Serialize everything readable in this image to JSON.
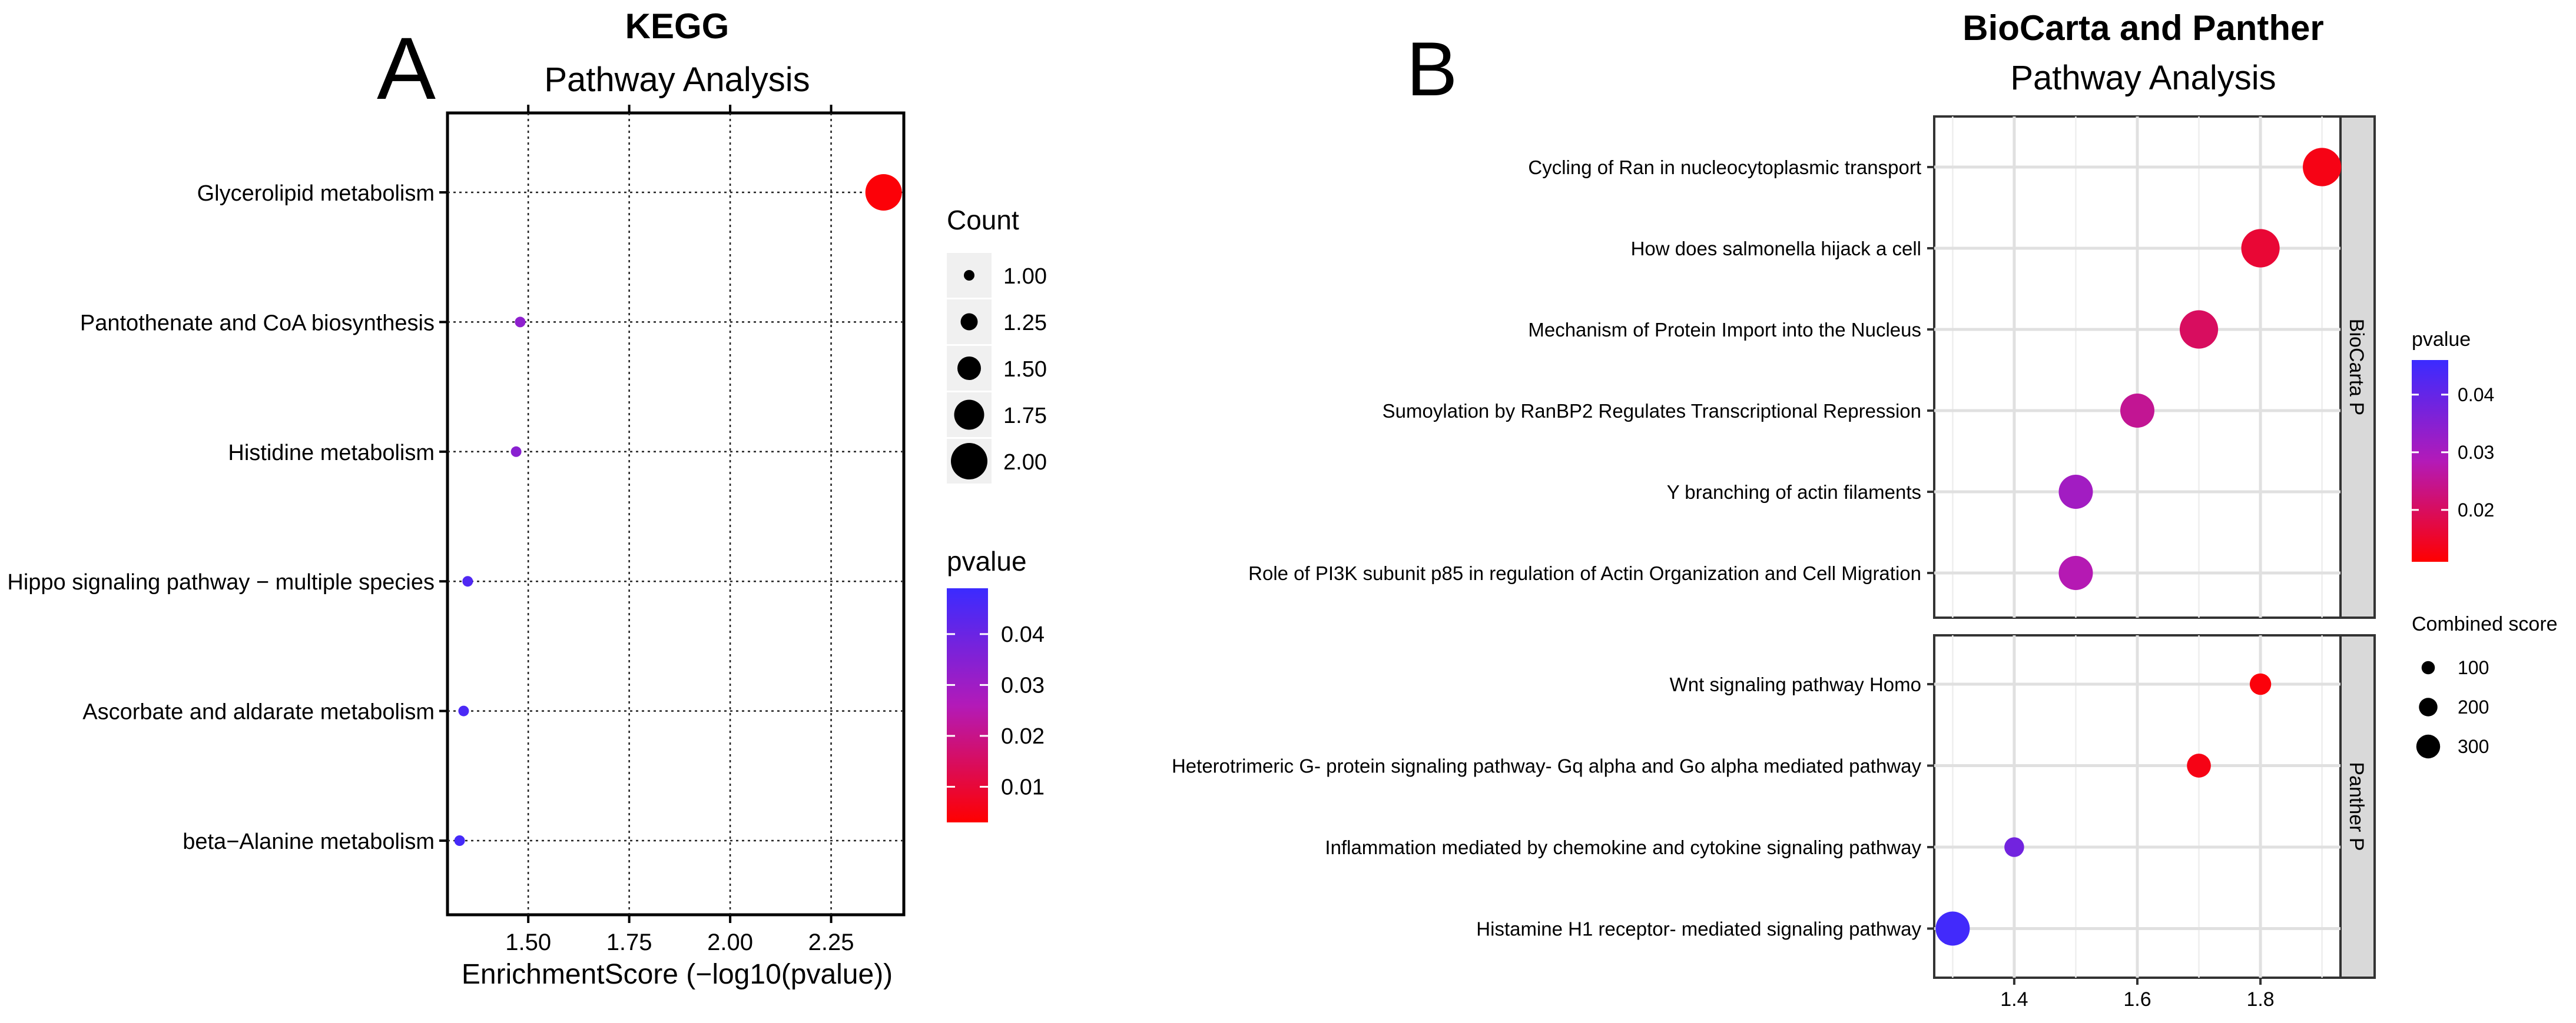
{
  "chart_data": [
    {
      "type": "scatter",
      "panel_label": "A",
      "title": "KEGG",
      "subtitle": "Pathway Analysis",
      "xlabel": "EnrichmentScore (−log10(pvalue))",
      "ylabel": "",
      "xlim": [
        1.3,
        2.43
      ],
      "x_ticks": [
        1.5,
        1.75,
        2.0,
        2.25
      ],
      "x_tick_labels": [
        "1.50",
        "1.75",
        "2.00",
        "2.25"
      ],
      "grid": true,
      "colors": {
        "low_p": "#ff0000",
        "high_p": "#3b2bff"
      },
      "categories": [
        "Glycerolipid metabolism",
        "Pantothenate and CoA biosynthesis",
        "Histidine metabolism",
        "Hippo signaling pathway − multiple species",
        "Ascorbate and aldarate metabolism",
        "beta−Alanine metabolism"
      ],
      "points": [
        {
          "category": "Glycerolipid metabolism",
          "x": 2.38,
          "count": 2,
          "pvalue": 0.004
        },
        {
          "category": "Pantothenate and CoA biosynthesis",
          "x": 1.48,
          "count": 1,
          "pvalue": 0.033
        },
        {
          "category": "Histidine metabolism",
          "x": 1.47,
          "count": 1,
          "pvalue": 0.034
        },
        {
          "category": "Hippo signaling pathway − multiple species",
          "x": 1.35,
          "count": 1,
          "pvalue": 0.045
        },
        {
          "category": "Ascorbate and aldarate metabolism",
          "x": 1.34,
          "count": 1,
          "pvalue": 0.046
        },
        {
          "category": "beta−Alanine metabolism",
          "x": 1.33,
          "count": 1,
          "pvalue": 0.047
        }
      ],
      "size_legend": {
        "title": "Count",
        "labels": [
          "1.00",
          "1.25",
          "1.50",
          "1.75",
          "2.00"
        ],
        "values": [
          1.0,
          1.25,
          1.5,
          1.75,
          2.0
        ]
      },
      "color_legend": {
        "title": "pvalue",
        "labels": [
          "0.04",
          "0.03",
          "0.02",
          "0.01"
        ],
        "values": [
          0.04,
          0.03,
          0.02,
          0.01
        ],
        "range": [
          0.003,
          0.049
        ]
      }
    },
    {
      "type": "scatter",
      "panel_label": "B",
      "title": "BioCarta and Panther",
      "subtitle": "Pathway Analysis",
      "xlabel": "",
      "ylabel": "",
      "xlim": [
        1.27,
        1.93
      ],
      "x_ticks": [
        1.4,
        1.6,
        1.8
      ],
      "x_tick_labels": [
        "1.4",
        "1.6",
        "1.8"
      ],
      "grid": true,
      "colors": {
        "low_p": "#ff0000",
        "high_p": "#3b2bff"
      },
      "facets": [
        {
          "name": "BioCarta P",
          "categories": [
            "Cycling of Ran in nucleocytoplasmic transport",
            "How does salmonella hijack a cell",
            "Mechanism of Protein Import into the Nucleus",
            "Sumoylation by RanBP2 Regulates Transcriptional Repression",
            "Y branching of actin filaments",
            "Role of PI3K subunit p85 in regulation of Actin Organization and Cell Migration"
          ],
          "points": [
            {
              "category": "Cycling of Ran in nucleocytoplasmic transport",
              "x": 1.9,
              "combined_score": 300,
              "pvalue": 0.013
            },
            {
              "category": "How does salmonella hijack a cell",
              "x": 1.8,
              "combined_score": 300,
              "pvalue": 0.016
            },
            {
              "category": "Mechanism of Protein Import into the Nucleus",
              "x": 1.7,
              "combined_score": 300,
              "pvalue": 0.02
            },
            {
              "category": "Sumoylation by RanBP2 Regulates Transcriptional Repression",
              "x": 1.6,
              "combined_score": 250,
              "pvalue": 0.025
            },
            {
              "category": "Y branching of actin filaments",
              "x": 1.5,
              "combined_score": 250,
              "pvalue": 0.031
            },
            {
              "category": "Role of PI3K subunit p85 in regulation of Actin Organization and Cell Migration",
              "x": 1.5,
              "combined_score": 250,
              "pvalue": 0.028
            }
          ]
        },
        {
          "name": "Panther P",
          "categories": [
            "Wnt signaling pathway Homo",
            "Heterotrimeric G- protein signaling pathway- Gq alpha and Go alpha mediated pathway",
            "Inflammation mediated by chemokine and cytokine signaling pathway",
            "Histamine H1 receptor- mediated signaling pathway"
          ],
          "points": [
            {
              "category": "Wnt signaling pathway Homo",
              "x": 1.8,
              "combined_score": 100,
              "pvalue": 0.012
            },
            {
              "category": "Heterotrimeric G- protein signaling pathway- Gq alpha and Go alpha mediated pathway",
              "x": 1.7,
              "combined_score": 130,
              "pvalue": 0.013
            },
            {
              "category": "Inflammation mediated by chemokine and cytokine signaling pathway",
              "x": 1.4,
              "combined_score": 80,
              "pvalue": 0.038
            },
            {
              "category": "Histamine H1 receptor- mediated signaling pathway",
              "x": 1.3,
              "combined_score": 250,
              "pvalue": 0.045
            }
          ]
        }
      ],
      "color_legend": {
        "title": "pvalue",
        "labels": [
          "0.04",
          "0.03",
          "0.02"
        ],
        "values": [
          0.04,
          0.03,
          0.02
        ],
        "range": [
          0.011,
          0.046
        ]
      },
      "size_legend": {
        "title": "Combined score",
        "labels": [
          "100",
          "200",
          "300"
        ],
        "values": [
          100,
          200,
          300
        ]
      }
    }
  ]
}
